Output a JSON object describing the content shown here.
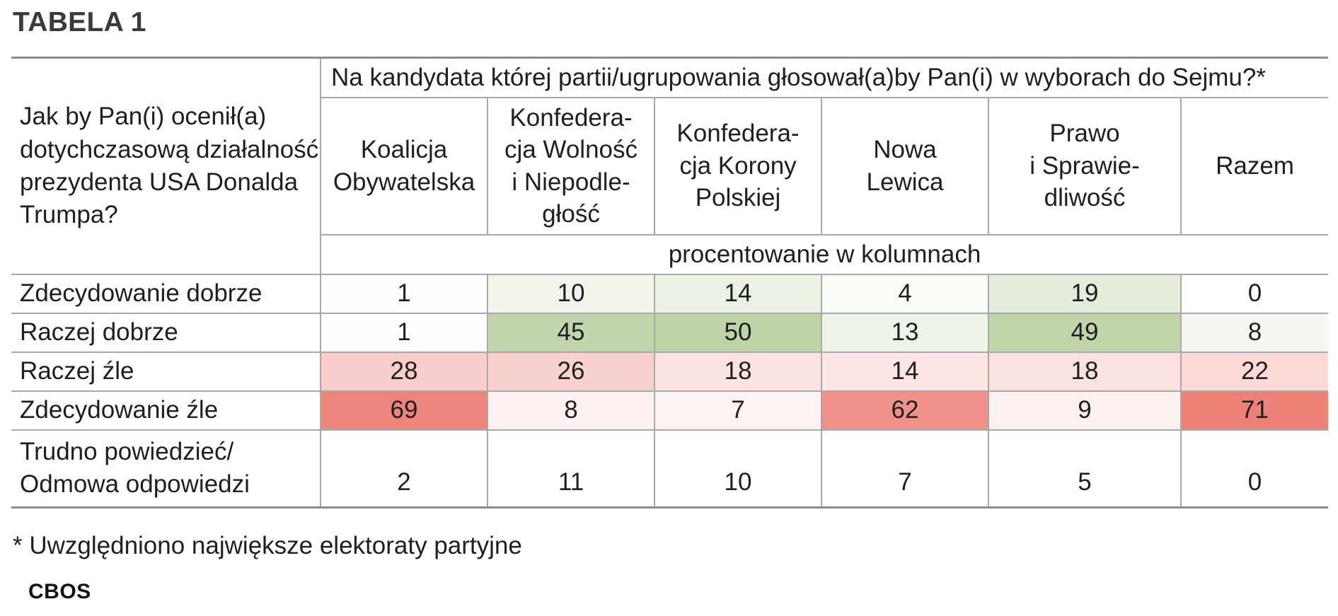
{
  "title": "TABELA 1",
  "question": "Jak by Pan(i) ocenił(a) dotychczasową działalność prezydenta USA Donalda Trumpa?",
  "header_question": "Na kandydata której partii/ugrupowania głosował(a)by Pan(i) w wyborach do Sejmu?*",
  "columns": [
    "Koalicja Obywatelska",
    "Konfedera-\ncja Wolność\ni Niepodle-\ngłość",
    "Konfedera-\ncja Korony\nPolskiej",
    "Nowa\nLewica",
    "Prawo\ni Sprawie-\ndliwość",
    "Razem"
  ],
  "subheader": "procentowanie w kolumnach",
  "rows": [
    {
      "label": "Zdecydowanie dobrze",
      "values": [
        "1",
        "10",
        "14",
        "4",
        "19",
        "0"
      ]
    },
    {
      "label": "Raczej dobrze",
      "values": [
        "1",
        "45",
        "50",
        "13",
        "49",
        "8"
      ]
    },
    {
      "label": "Raczej źle",
      "values": [
        "28",
        "26",
        "18",
        "14",
        "18",
        "22"
      ]
    },
    {
      "label": "Zdecydowanie źle",
      "values": [
        "69",
        "8",
        "7",
        "62",
        "9",
        "71"
      ]
    },
    {
      "label": "Trudno powiedzieć/ Odmowa odpowiedzi",
      "values": [
        "2",
        "11",
        "10",
        "7",
        "5",
        "0"
      ]
    }
  ],
  "footnote": "* Uwzględniono największe elektoraty partyjne",
  "logo": "CBOS",
  "colors": {
    "green_light": "#f0f4eb",
    "green_mid": "#e4ecdb",
    "green_strong": "#c2d6ae",
    "red_faint": "#fdf2f1",
    "red_light": "#fbe3e2",
    "red_mid": "#f8cdcb",
    "red_strong": "#f0928a",
    "red_stronger": "#ee8780",
    "neutral": "#fefefe"
  }
}
